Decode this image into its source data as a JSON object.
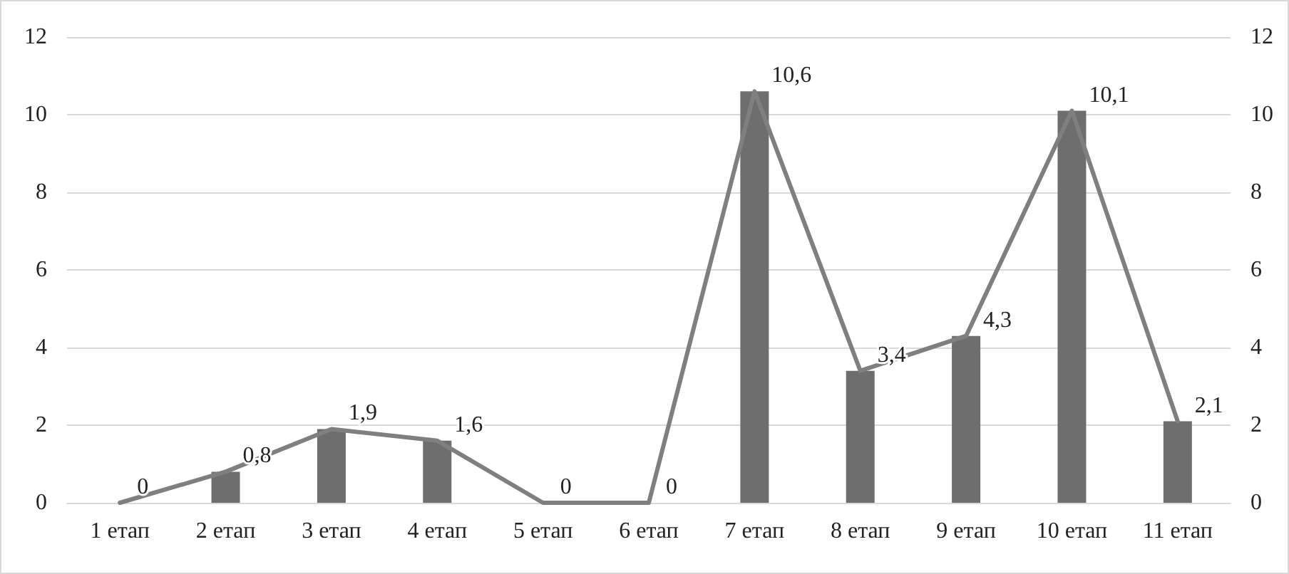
{
  "chart_data": {
    "type": "bar",
    "categories": [
      "1 етап",
      "2 етап",
      "3 етап",
      "4 етап",
      "5 етап",
      "6 етап",
      "7 етап",
      "8 етап",
      "9 етап",
      "10 етап",
      "11 етап"
    ],
    "series": [
      {
        "color": "#6e6e6e",
        "values": [
          0,
          0.8,
          1.9,
          1.6,
          0,
          0,
          10.6,
          3.4,
          4.3,
          10.1,
          2.1
        ]
      },
      {
        "type": "line",
        "color": "#7f7f7f",
        "values": [
          0,
          0.8,
          1.9,
          1.6,
          0,
          0,
          10.6,
          3.4,
          4.3,
          10.1,
          2.1
        ],
        "value_labels": [
          "0",
          "0,8",
          "1,9",
          "1,6",
          "0",
          "0",
          "10,6",
          "3,4",
          "4,3",
          "10,1",
          "2,1"
        ]
      }
    ],
    "ylim": [
      0,
      12
    ],
    "yticks": [
      0,
      2,
      4,
      6,
      8,
      10,
      12
    ],
    "y2lim": [
      0,
      12
    ],
    "y2ticks": [
      0,
      2,
      4,
      6,
      8,
      10,
      12
    ],
    "grid": "y",
    "marker": "none",
    "line_style": "solid"
  }
}
